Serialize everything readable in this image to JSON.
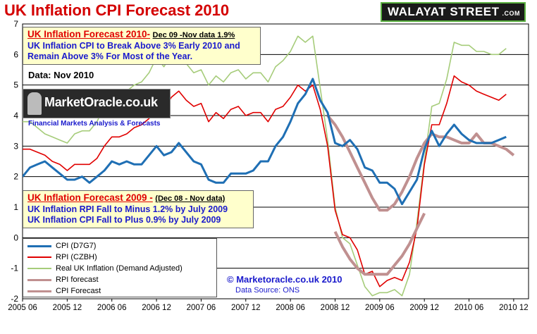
{
  "header": {
    "title": "UK Inflation CPI Forecast 2010",
    "brand": "WALAYAT STREET",
    "brand_suffix": ".COM"
  },
  "annotations": {
    "box2010_head": "UK Inflation Forecast 2010-",
    "box2010_sub": "Dec 09 -Nov data 1.9%",
    "box2010_line1": "UK Inflation CPI to Break Above 3% Early 2010 and",
    "box2010_line2": "Remain Above 3% For Most of the Year.",
    "data_label": "Data:  Nov 2010",
    "mo_logo": "MarketOracle.co.uk",
    "mo_tagline": "Financial Markets Analysis & Forecasts",
    "box2009_head": "UK Inflation Forecast 2009 -",
    "box2009_sub": "(Dec 08 - Nov data)",
    "box2009_line1": "UK Inflation RPI Fall to  Minus 1.2% by July 2009",
    "box2009_line2": "UK Inflation CPI Fall to Plus 0.9% by July 2009",
    "copyright": "© Marketoracle.co.uk  2010",
    "source": "Data Source: ONS"
  },
  "chart_data": {
    "type": "line",
    "title": "UK Inflation CPI Forecast 2010",
    "xlabel": "",
    "ylabel": "",
    "ylim": [
      -2,
      7
    ],
    "xlim": [
      "2005-06",
      "2011-02"
    ],
    "grid": true,
    "legend_position": "bottom-left",
    "x_tick_labels": [
      "2005 06",
      "2005 12",
      "2006 06",
      "2006 12",
      "2007 06",
      "2007 12",
      "2008 06",
      "2008 12",
      "2009 06",
      "2009 12",
      "2010 06",
      "2010 12"
    ],
    "y_tick_labels": [
      "-2",
      "-1",
      "0",
      "1",
      "2",
      "3",
      "4",
      "5",
      "6",
      "7"
    ],
    "series": [
      {
        "name": "CPI (D7G7)",
        "color": "#1f6fb4",
        "x": [
          "2005-06",
          "2005-07",
          "2005-08",
          "2005-09",
          "2005-10",
          "2005-11",
          "2005-12",
          "2006-01",
          "2006-02",
          "2006-03",
          "2006-04",
          "2006-05",
          "2006-06",
          "2006-07",
          "2006-08",
          "2006-09",
          "2006-10",
          "2006-11",
          "2006-12",
          "2007-01",
          "2007-02",
          "2007-03",
          "2007-04",
          "2007-05",
          "2007-06",
          "2007-07",
          "2007-08",
          "2007-09",
          "2007-10",
          "2007-11",
          "2007-12",
          "2008-01",
          "2008-02",
          "2008-03",
          "2008-04",
          "2008-05",
          "2008-06",
          "2008-07",
          "2008-08",
          "2008-09",
          "2008-10",
          "2008-11",
          "2008-12",
          "2009-01",
          "2009-02",
          "2009-03",
          "2009-04",
          "2009-05",
          "2009-06",
          "2009-07",
          "2009-08",
          "2009-09",
          "2009-10",
          "2009-11",
          "2009-12",
          "2010-01",
          "2010-02",
          "2010-03",
          "2010-04",
          "2010-05",
          "2010-06",
          "2010-07",
          "2010-08",
          "2010-09",
          "2010-10",
          "2010-11"
        ],
        "values": [
          2.0,
          2.3,
          2.4,
          2.5,
          2.3,
          2.1,
          1.9,
          1.9,
          2.0,
          1.8,
          2.0,
          2.2,
          2.5,
          2.4,
          2.5,
          2.4,
          2.4,
          2.7,
          3.0,
          2.7,
          2.8,
          3.1,
          2.8,
          2.5,
          2.4,
          1.9,
          1.8,
          1.8,
          2.1,
          2.1,
          2.1,
          2.2,
          2.5,
          2.5,
          3.0,
          3.3,
          3.8,
          4.4,
          4.7,
          5.2,
          4.5,
          4.1,
          3.1,
          3.0,
          3.2,
          2.9,
          2.3,
          2.2,
          1.8,
          1.8,
          1.6,
          1.1,
          1.5,
          1.9,
          2.9,
          3.5,
          3.0,
          3.4,
          3.7,
          3.4,
          3.2,
          3.1,
          3.1,
          3.1,
          3.2,
          3.3
        ]
      },
      {
        "name": "RPI (CZBH)",
        "color": "#e00000",
        "x": [
          "2005-06",
          "2005-07",
          "2005-08",
          "2005-09",
          "2005-10",
          "2005-11",
          "2005-12",
          "2006-01",
          "2006-02",
          "2006-03",
          "2006-04",
          "2006-05",
          "2006-06",
          "2006-07",
          "2006-08",
          "2006-09",
          "2006-10",
          "2006-11",
          "2006-12",
          "2007-01",
          "2007-02",
          "2007-03",
          "2007-04",
          "2007-05",
          "2007-06",
          "2007-07",
          "2007-08",
          "2007-09",
          "2007-10",
          "2007-11",
          "2007-12",
          "2008-01",
          "2008-02",
          "2008-03",
          "2008-04",
          "2008-05",
          "2008-06",
          "2008-07",
          "2008-08",
          "2008-09",
          "2008-10",
          "2008-11",
          "2008-12",
          "2009-01",
          "2009-02",
          "2009-03",
          "2009-04",
          "2009-05",
          "2009-06",
          "2009-07",
          "2009-08",
          "2009-09",
          "2009-10",
          "2009-11",
          "2009-12",
          "2010-01",
          "2010-02",
          "2010-03",
          "2010-04",
          "2010-05",
          "2010-06",
          "2010-07",
          "2010-08",
          "2010-09",
          "2010-10",
          "2010-11"
        ],
        "values": [
          2.9,
          2.9,
          2.8,
          2.7,
          2.5,
          2.4,
          2.2,
          2.4,
          2.4,
          2.4,
          2.6,
          3.0,
          3.3,
          3.3,
          3.4,
          3.6,
          3.7,
          3.9,
          4.4,
          4.2,
          4.6,
          4.8,
          4.5,
          4.3,
          4.4,
          3.8,
          4.1,
          3.9,
          4.2,
          4.3,
          4.0,
          4.1,
          4.1,
          3.8,
          4.2,
          4.3,
          4.6,
          5.0,
          4.8,
          5.0,
          4.2,
          3.0,
          0.9,
          0.1,
          0.0,
          -0.4,
          -1.2,
          -1.1,
          -1.6,
          -1.4,
          -1.3,
          -1.4,
          -0.8,
          0.3,
          2.4,
          3.7,
          3.7,
          4.4,
          5.3,
          5.1,
          5.0,
          4.8,
          4.7,
          4.6,
          4.5,
          4.7
        ]
      },
      {
        "name": "Real UK Inflation (Demand Adjusted)",
        "color": "#a6cc7a",
        "x": [
          "2005-06",
          "2005-07",
          "2005-08",
          "2005-09",
          "2005-10",
          "2005-11",
          "2005-12",
          "2006-01",
          "2006-02",
          "2006-03",
          "2006-04",
          "2006-05",
          "2006-06",
          "2006-07",
          "2006-08",
          "2006-09",
          "2006-10",
          "2006-11",
          "2006-12",
          "2007-01",
          "2007-02",
          "2007-03",
          "2007-04",
          "2007-05",
          "2007-06",
          "2007-07",
          "2007-08",
          "2007-09",
          "2007-10",
          "2007-11",
          "2007-12",
          "2008-01",
          "2008-02",
          "2008-03",
          "2008-04",
          "2008-05",
          "2008-06",
          "2008-07",
          "2008-08",
          "2008-09",
          "2008-10",
          "2008-11",
          "2008-12",
          "2009-01",
          "2009-02",
          "2009-03",
          "2009-04",
          "2009-05",
          "2009-06",
          "2009-07",
          "2009-08",
          "2009-09",
          "2009-10",
          "2009-11",
          "2009-12",
          "2010-01",
          "2010-02",
          "2010-03",
          "2010-04",
          "2010-05",
          "2010-06",
          "2010-07",
          "2010-08",
          "2010-09",
          "2010-10",
          "2010-11"
        ],
        "values": [
          3.8,
          3.8,
          3.6,
          3.4,
          3.3,
          3.2,
          3.1,
          3.4,
          3.5,
          3.5,
          3.8,
          4.3,
          4.6,
          4.6,
          4.8,
          5.0,
          5.1,
          5.4,
          5.9,
          5.6,
          6.0,
          6.2,
          5.7,
          5.4,
          5.5,
          5.0,
          5.3,
          5.1,
          5.4,
          5.5,
          5.2,
          5.4,
          5.4,
          5.1,
          5.6,
          5.8,
          6.1,
          6.6,
          6.4,
          6.6,
          4.9,
          3.2,
          1.0,
          0.0,
          -0.2,
          -0.9,
          -1.6,
          -1.9,
          -1.8,
          -1.8,
          -1.7,
          -1.9,
          -1.2,
          0.5,
          2.5,
          4.3,
          4.4,
          5.2,
          6.4,
          6.3,
          6.3,
          6.1,
          6.1,
          6.0,
          6.0,
          6.2
        ]
      },
      {
        "name": "RPI forecast",
        "color": "#c09090",
        "x": [
          "2008-12",
          "2009-01",
          "2009-02",
          "2009-03",
          "2009-04",
          "2009-05",
          "2009-06",
          "2009-07",
          "2009-08",
          "2009-09",
          "2009-10",
          "2009-11",
          "2009-12",
          "2010-01",
          "2010-02",
          "2010-03",
          "2010-04",
          "2010-05",
          "2010-06",
          "2010-07",
          "2010-08",
          "2010-09",
          "2010-10",
          "2010-11",
          "2010-12"
        ],
        "values": [
          0.2,
          -0.3,
          -0.7,
          -1.0,
          -1.2,
          -1.2,
          -1.2,
          -1.2,
          -0.9,
          -0.6,
          -0.2,
          0.3,
          0.8,
          null,
          null,
          null,
          null,
          null,
          null,
          null,
          null,
          null,
          null,
          null,
          null
        ]
      },
      {
        "name": "CPI Forecast",
        "color": "#c09090",
        "x": [
          "2008-08",
          "2008-09",
          "2008-10",
          "2008-11",
          "2008-12",
          "2009-01",
          "2009-02",
          "2009-03",
          "2009-04",
          "2009-05",
          "2009-06",
          "2009-07",
          "2009-08",
          "2009-09",
          "2009-10",
          "2009-11",
          "2009-12",
          "2010-01",
          "2010-02",
          "2010-03",
          "2010-04",
          "2010-05",
          "2010-06",
          "2010-07",
          "2010-08",
          "2010-09",
          "2010-10",
          "2010-11",
          "2010-12"
        ],
        "values": [
          null,
          null,
          null,
          4.0,
          3.7,
          3.3,
          2.8,
          2.3,
          1.8,
          1.3,
          0.9,
          0.9,
          1.1,
          1.5,
          2.0,
          2.6,
          3.1,
          3.4,
          3.3,
          3.3,
          3.2,
          3.1,
          3.1,
          3.4,
          3.1,
          3.1,
          3.0,
          2.9,
          2.7
        ]
      }
    ]
  }
}
